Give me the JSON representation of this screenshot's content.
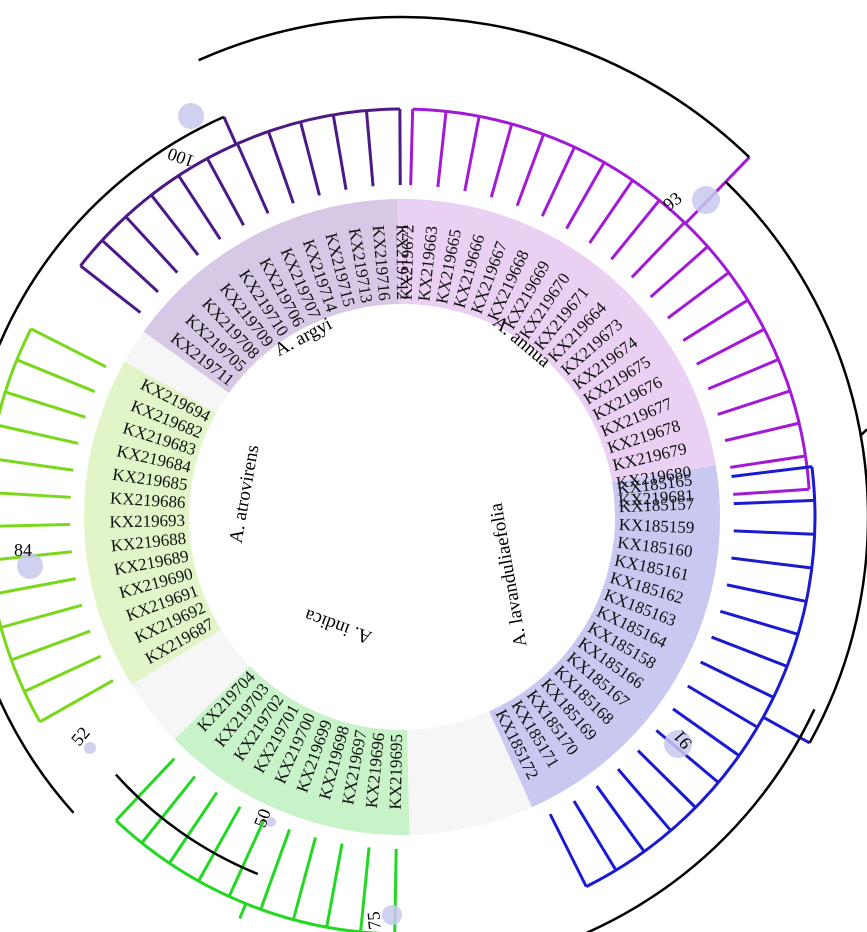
{
  "tree": {
    "clades": [
      {
        "name": "A. argyi",
        "color": "#4b1a86",
        "band": "#d7c8e6",
        "tips": [
          "KX219711",
          "KX219705",
          "KX219708",
          "KX219709",
          "KX219710",
          "KX219706",
          "KX219707",
          "KX219714",
          "KX219715",
          "KX219713",
          "KX219716",
          "KX219712"
        ]
      },
      {
        "name": "A. annua",
        "color": "#a21ad6",
        "band": "#ead0f2",
        "tips": [
          "KX219672",
          "KX219663",
          "KX219665",
          "KX219666",
          "KX219667",
          "KX219668",
          "KX219669",
          "KX219670",
          "KX219671",
          "KX219664",
          "KX219673",
          "KX219674",
          "KX219675",
          "KX219676",
          "KX219677",
          "KX219678",
          "KX219679",
          "KX219680",
          "KX219681"
        ]
      },
      {
        "name": "A. lavanduliaefolia",
        "color": "#1a1ad0",
        "band": "#c8c8f0",
        "tips": [
          "KX185165",
          "KX185157",
          "KX185159",
          "KX185160",
          "KX185161",
          "KX185162",
          "KX185163",
          "KX185164",
          "KX185158",
          "KX185166",
          "KX185167",
          "KX185168",
          "KX185169",
          "KX185170",
          "KX185171",
          "KX185172"
        ]
      },
      {
        "name": "A. indica",
        "color": "#22d822",
        "band": "#c8f2c8",
        "tips": [
          "KX219695",
          "KX219696",
          "KX219697",
          "KX219698",
          "KX219699",
          "KX219700",
          "KX219701",
          "KX219702",
          "KX219703",
          "KX219704"
        ]
      },
      {
        "name": "A. atrovirens",
        "color": "#7ad81a",
        "band": "#e2f5c8",
        "tips": [
          "KX219687",
          "KX219692",
          "KX219691",
          "KX219690",
          "KX219689",
          "KX219688",
          "KX219693",
          "KX219686",
          "KX219685",
          "KX219684",
          "KX219683",
          "KX219682",
          "KX219694"
        ]
      }
    ],
    "bootstrap": {
      "argyi": "100",
      "annua": "93",
      "lavanduliaefolia": "91",
      "atrovirens": "84",
      "indica": "50",
      "indica_atrovirens": "52",
      "lower": "75"
    }
  }
}
